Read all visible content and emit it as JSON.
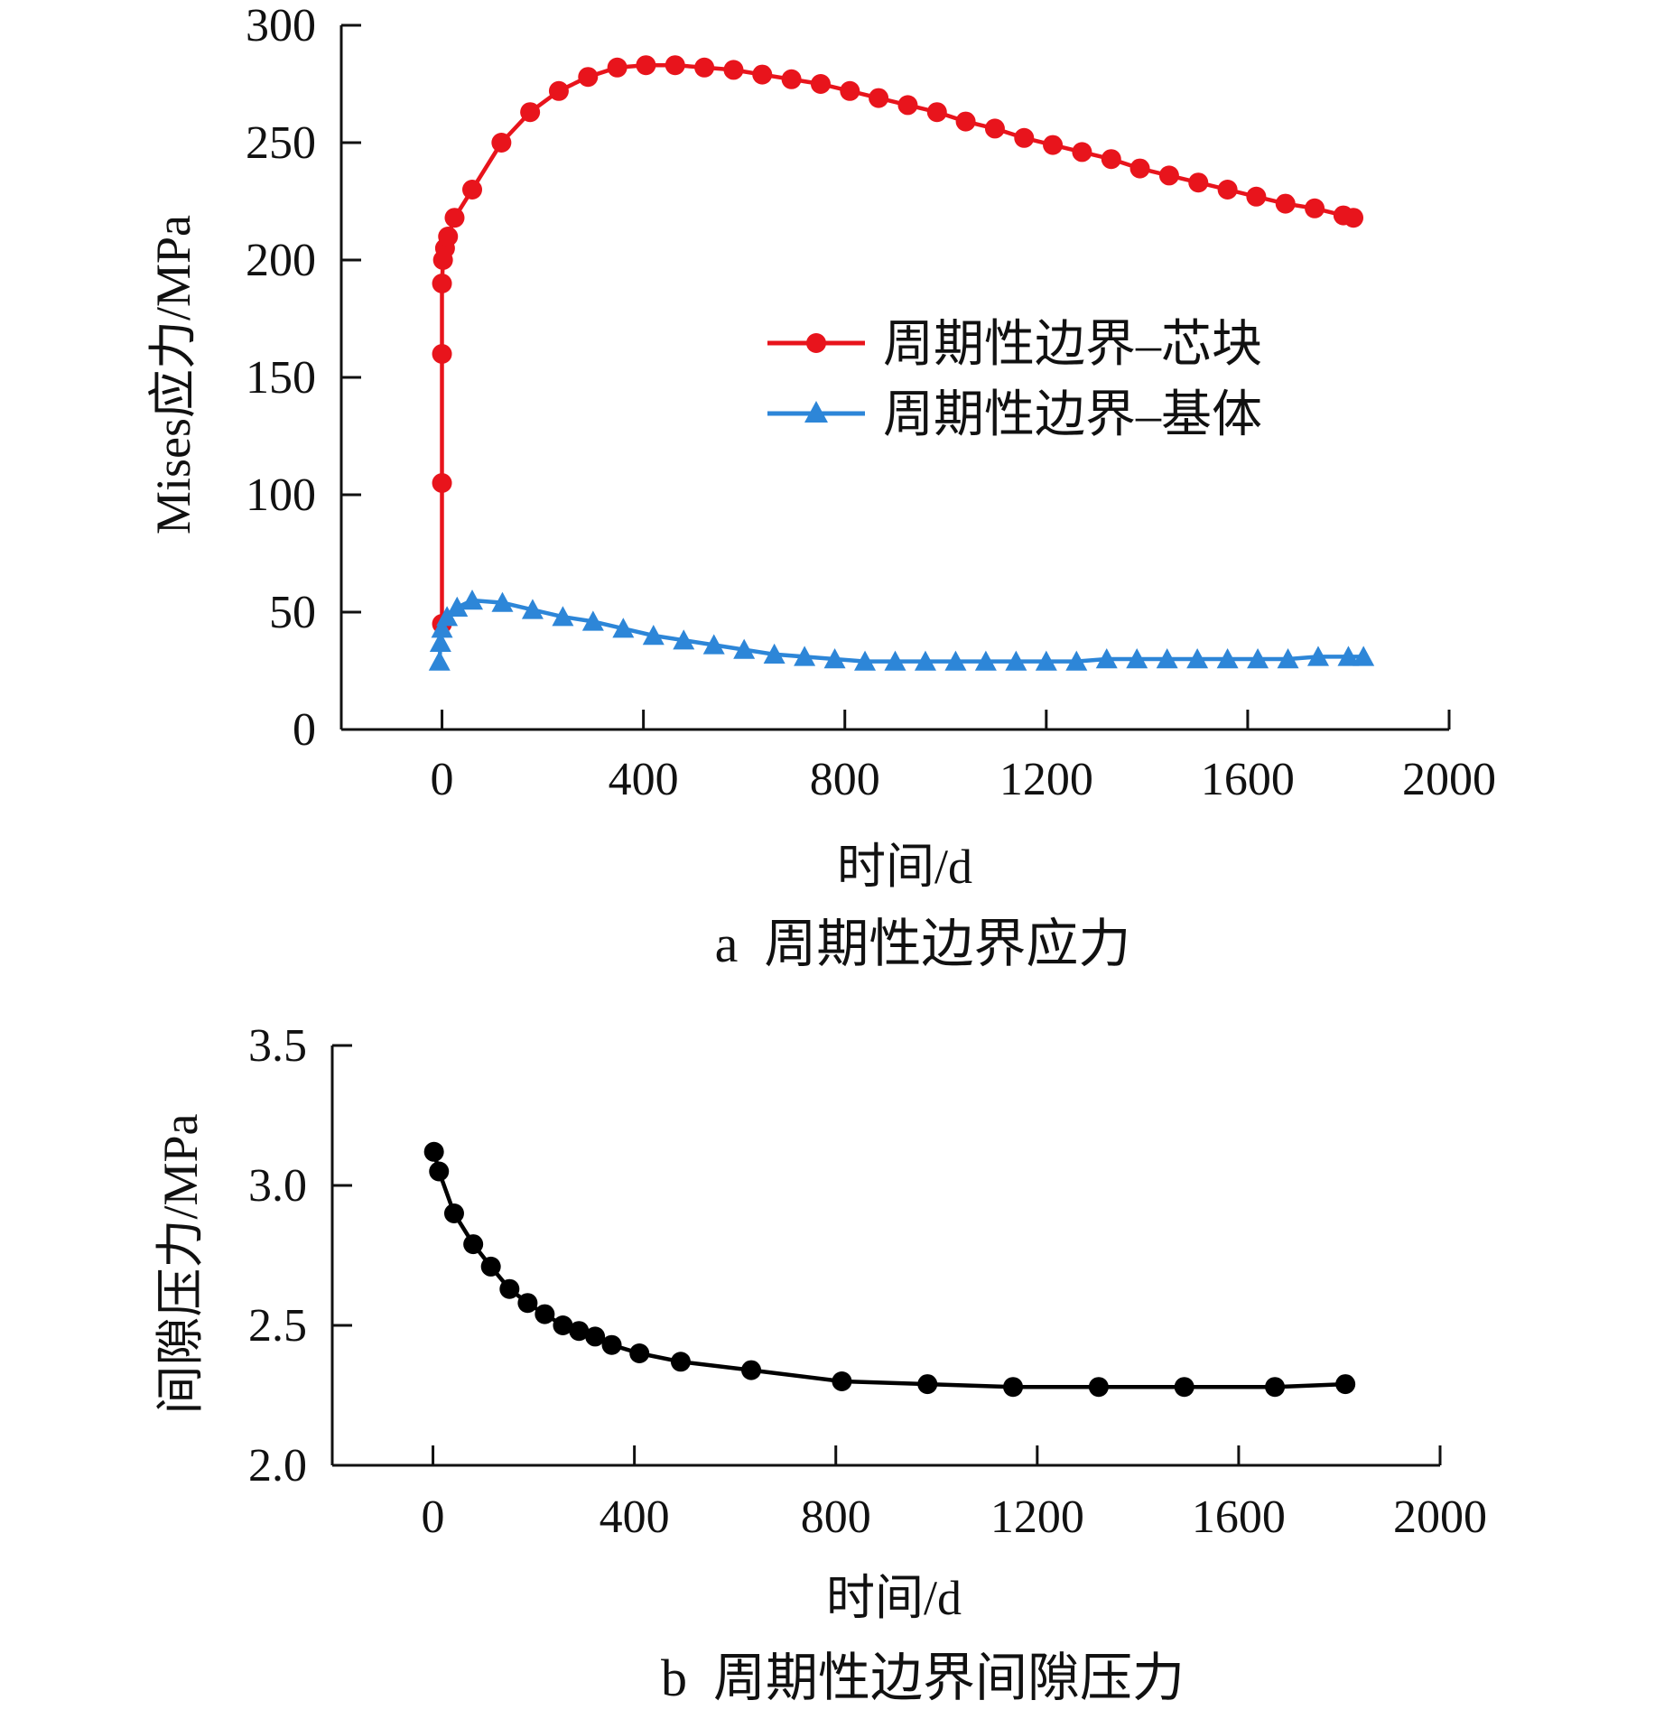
{
  "chart_data": [
    {
      "type": "line",
      "panel": "a",
      "caption": "a  周期性边界应力",
      "xlabel": "时间/d",
      "ylabel": "Mises应力/MPa",
      "xlim": [
        -200,
        2000
      ],
      "ylim": [
        0,
        300
      ],
      "xticks": [
        0,
        400,
        800,
        1200,
        1600,
        2000
      ],
      "yticks": [
        0,
        50,
        100,
        150,
        200,
        250,
        300
      ],
      "grid": false,
      "legend_position": "right-middle",
      "series": [
        {
          "name": "周期性边界–芯块",
          "color": "#e8141c",
          "marker": "circle",
          "points": [
            [
              0,
              45
            ],
            [
              0,
              105
            ],
            [
              0,
              160
            ],
            [
              0,
              190
            ],
            [
              2,
              200
            ],
            [
              6,
              205
            ],
            [
              12,
              210
            ],
            [
              25,
              218
            ],
            [
              60,
              230
            ],
            [
              118,
              250
            ],
            [
              175,
              263
            ],
            [
              232,
              272
            ],
            [
              290,
              278
            ],
            [
              348,
              282
            ],
            [
              405,
              283
            ],
            [
              463,
              283
            ],
            [
              521,
              282
            ],
            [
              579,
              281
            ],
            [
              636,
              279
            ],
            [
              694,
              277
            ],
            [
              752,
              275
            ],
            [
              810,
              272
            ],
            [
              867,
              269
            ],
            [
              925,
              266
            ],
            [
              983,
              263
            ],
            [
              1040,
              259
            ],
            [
              1098,
              256
            ],
            [
              1156,
              252
            ],
            [
              1213,
              249
            ],
            [
              1271,
              246
            ],
            [
              1329,
              243
            ],
            [
              1386,
              239
            ],
            [
              1444,
              236
            ],
            [
              1502,
              233
            ],
            [
              1560,
              230
            ],
            [
              1617,
              227
            ],
            [
              1675,
              224
            ],
            [
              1733,
              222
            ],
            [
              1790,
              219
            ],
            [
              1810,
              218
            ]
          ]
        },
        {
          "name": "周期性边界–基体",
          "color": "#2d86d8",
          "marker": "triangle",
          "points": [
            [
              -5,
              29
            ],
            [
              -3,
              37
            ],
            [
              0,
              43
            ],
            [
              10,
              48
            ],
            [
              30,
              52
            ],
            [
              60,
              55
            ],
            [
              120,
              54
            ],
            [
              180,
              51
            ],
            [
              240,
              48
            ],
            [
              300,
              46
            ],
            [
              360,
              43
            ],
            [
              420,
              40
            ],
            [
              480,
              38
            ],
            [
              540,
              36
            ],
            [
              600,
              34
            ],
            [
              660,
              32
            ],
            [
              720,
              31
            ],
            [
              780,
              30
            ],
            [
              840,
              29
            ],
            [
              900,
              29
            ],
            [
              960,
              29
            ],
            [
              1020,
              29
            ],
            [
              1080,
              29
            ],
            [
              1140,
              29
            ],
            [
              1200,
              29
            ],
            [
              1260,
              29
            ],
            [
              1320,
              30
            ],
            [
              1380,
              30
            ],
            [
              1440,
              30
            ],
            [
              1500,
              30
            ],
            [
              1560,
              30
            ],
            [
              1620,
              30
            ],
            [
              1680,
              30
            ],
            [
              1740,
              31
            ],
            [
              1800,
              31
            ],
            [
              1830,
              31
            ]
          ]
        }
      ]
    },
    {
      "type": "line",
      "panel": "b",
      "caption": "b  周期性边界间隙压力",
      "xlabel": "时间/d",
      "ylabel": "间隙压力/MPa",
      "xlim": [
        -200,
        2000
      ],
      "ylim": [
        2.0,
        3.5
      ],
      "xticks": [
        0,
        400,
        800,
        1200,
        1600,
        2000
      ],
      "yticks": [
        "2.0",
        "2.5",
        "3.0",
        "3.5"
      ],
      "grid": false,
      "series": [
        {
          "color": "#000000",
          "marker": "circle",
          "points": [
            [
              2,
              3.12
            ],
            [
              12,
              3.05
            ],
            [
              42,
              2.9
            ],
            [
              80,
              2.79
            ],
            [
              115,
              2.71
            ],
            [
              152,
              2.63
            ],
            [
              188,
              2.58
            ],
            [
              222,
              2.54
            ],
            [
              258,
              2.5
            ],
            [
              290,
              2.48
            ],
            [
              322,
              2.46
            ],
            [
              355,
              2.43
            ],
            [
              410,
              2.4
            ],
            [
              492,
              2.37
            ],
            [
              632,
              2.34
            ],
            [
              812,
              2.3
            ],
            [
              982,
              2.29
            ],
            [
              1152,
              2.28
            ],
            [
              1322,
              2.28
            ],
            [
              1492,
              2.28
            ],
            [
              1672,
              2.28
            ],
            [
              1812,
              2.29
            ]
          ]
        }
      ]
    }
  ]
}
